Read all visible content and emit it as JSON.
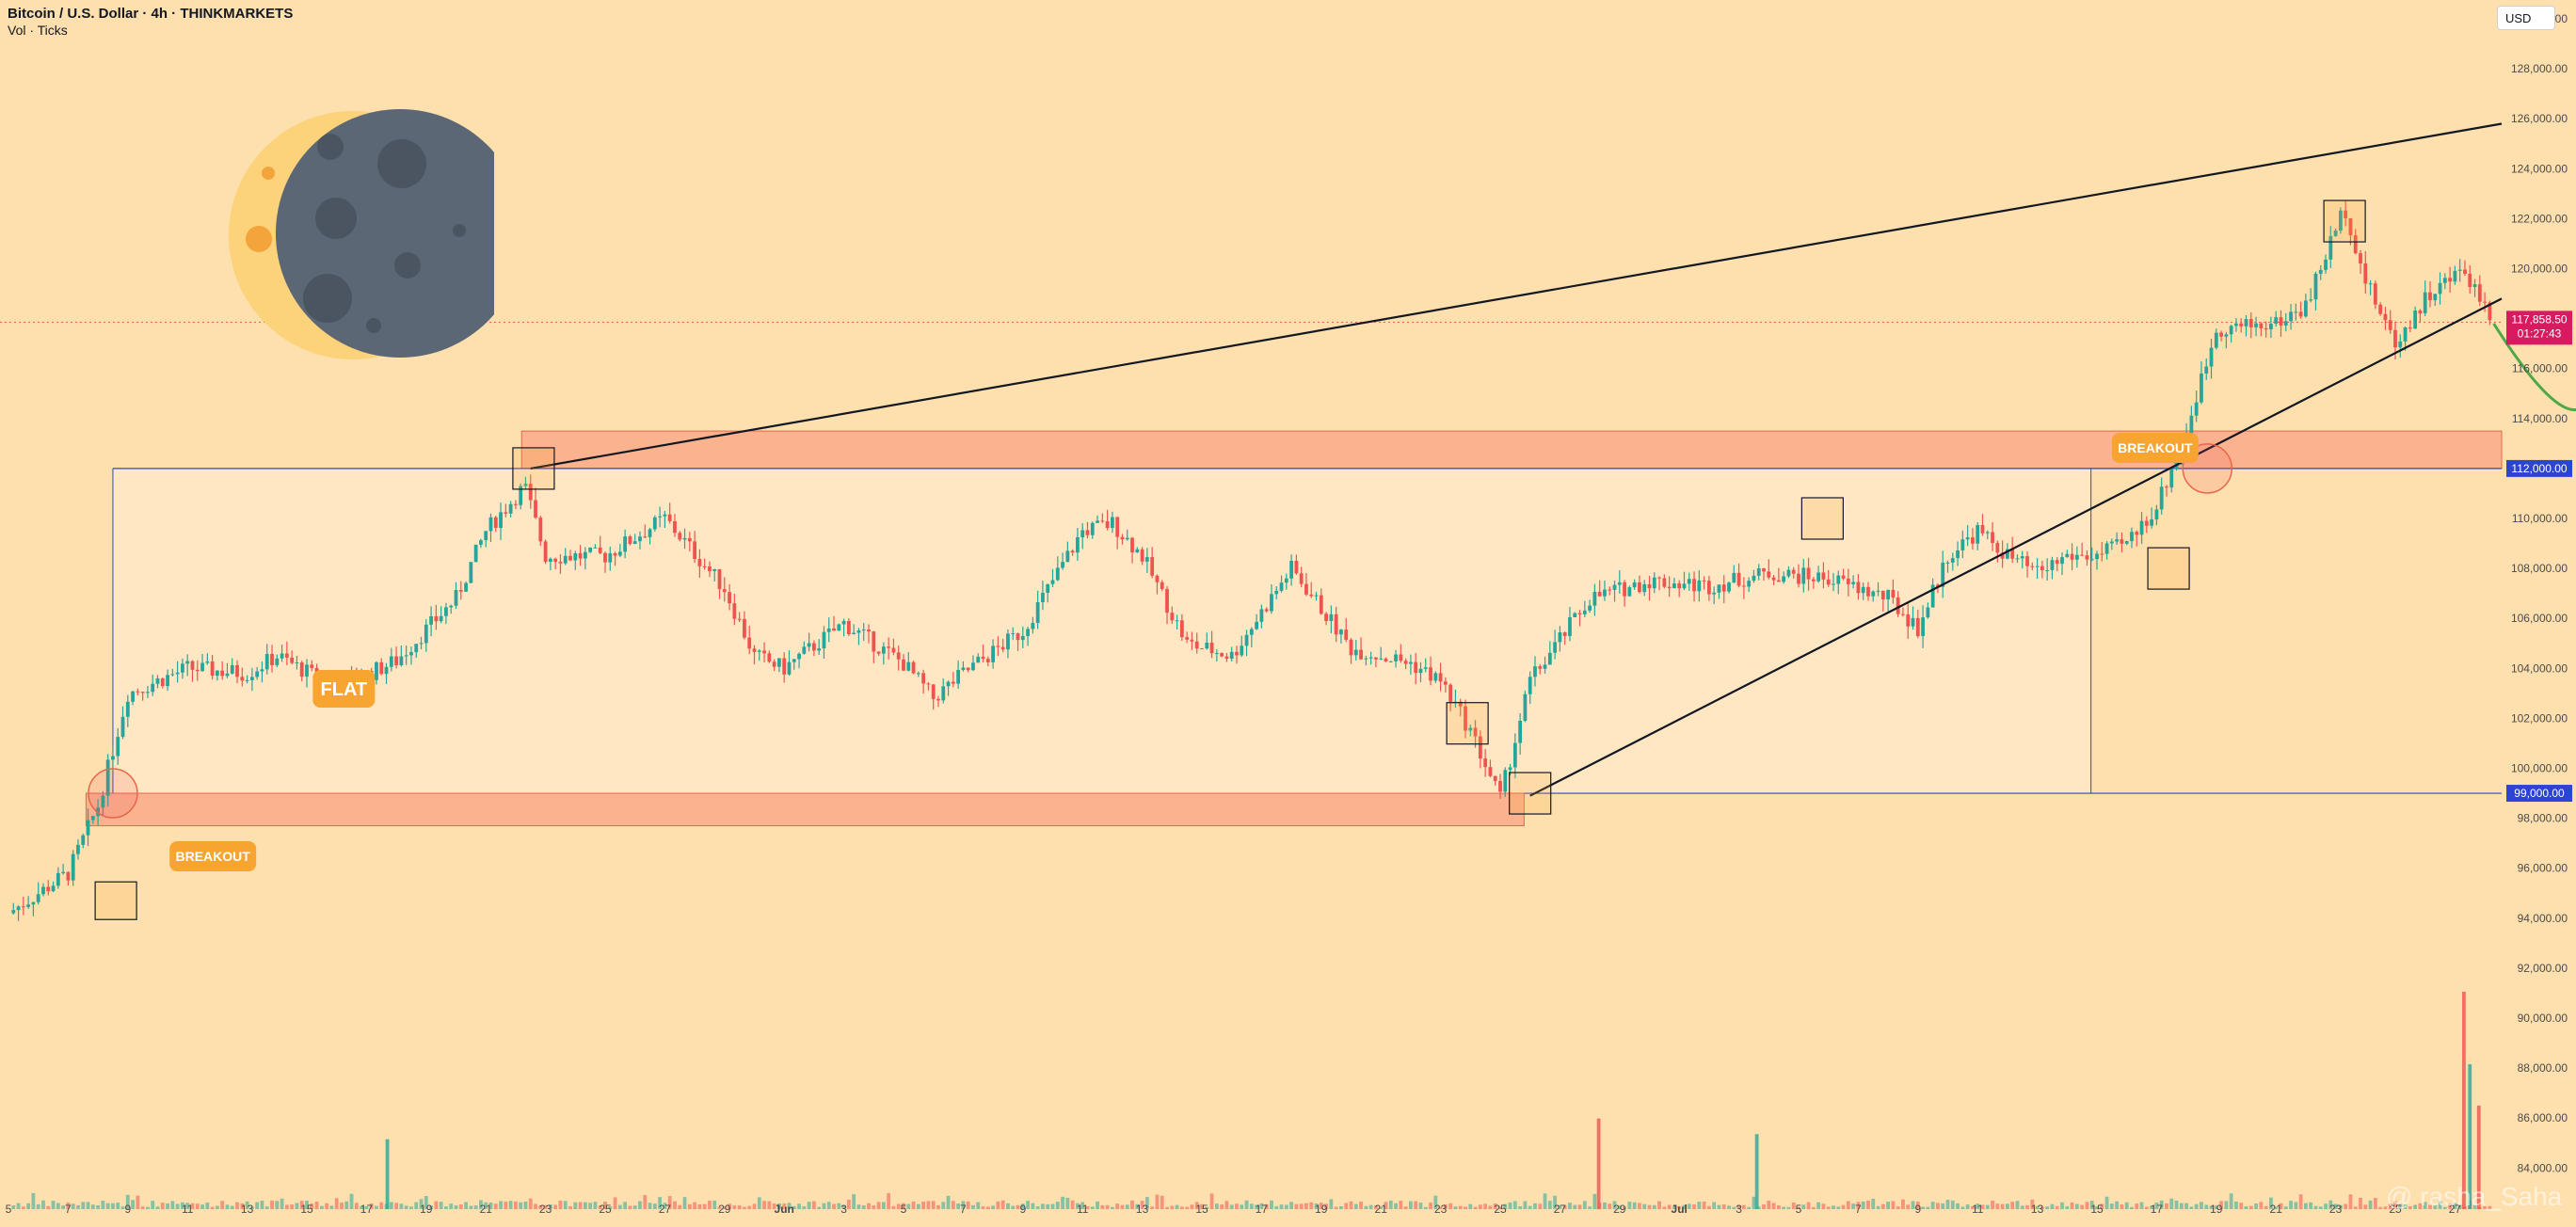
{
  "header": {
    "symbol": "Bitcoin / U.S. Dollar · 4h · THINKMARKETS",
    "volume": "Vol · Ticks"
  },
  "currency": "USD",
  "watermark": "@ rasha_Saha",
  "colors": {
    "background": "#fee0af",
    "up": "#26a69a",
    "down": "#ef5350",
    "zone": "#f6927a",
    "range": "#ffe8c8",
    "trendline": "#131722",
    "projection": "#4ea848",
    "level_line": "#2c44d4",
    "label_bg": "#f7a430",
    "price_tag": "#d81b60"
  },
  "chart_data": {
    "type": "candlestick",
    "title": "Bitcoin / U.S. Dollar · 4h · THINKMARKETS",
    "ylim": [
      84000,
      130000
    ],
    "y_ticks": [
      "130,000.00",
      "128,000.00",
      "126,000.00",
      "124,000.00",
      "122,000.00",
      "120,000.00",
      "118,000.00",
      "116,000.00",
      "114,000.00",
      "112,000.00",
      "110,000.00",
      "108,000.00",
      "106,000.00",
      "104,000.00",
      "102,000.00",
      "100,000.00",
      "98,000.00",
      "96,000.00",
      "94,000.00",
      "92,000.00",
      "90,000.00",
      "88,000.00",
      "86,000.00",
      "84,000.00"
    ],
    "x_ticks": [
      "5",
      "7",
      "9",
      "11",
      "13",
      "15",
      "17",
      "19",
      "21",
      "23",
      "25",
      "27",
      "29",
      "Jun",
      "3",
      "5",
      "7",
      "9",
      "11",
      "13",
      "15",
      "17",
      "19",
      "21",
      "23",
      "25",
      "27",
      "29",
      "Jul",
      "3",
      "5",
      "7",
      "9",
      "11",
      "13",
      "15",
      "17",
      "19",
      "21",
      "23",
      "25",
      "27"
    ],
    "price_path": [
      [
        5,
        94200
      ],
      [
        7,
        95800
      ],
      [
        8,
        98500
      ],
      [
        9,
        103000
      ],
      [
        11,
        104000
      ],
      [
        13,
        103800
      ],
      [
        14,
        104500
      ],
      [
        16,
        103200
      ],
      [
        18,
        104300
      ],
      [
        20,
        106800
      ],
      [
        21,
        109500
      ],
      [
        22.3,
        111300
      ],
      [
        23,
        108500
      ],
      [
        25,
        108500
      ],
      [
        27,
        110000
      ],
      [
        29,
        107200
      ],
      [
        30,
        104500
      ],
      [
        31,
        104000
      ],
      [
        33,
        105800
      ],
      [
        35,
        104200
      ],
      [
        36,
        102800
      ],
      [
        37,
        103800
      ],
      [
        39,
        105500
      ],
      [
        41,
        109500
      ],
      [
        42,
        109800
      ],
      [
        43,
        108500
      ],
      [
        44.5,
        105000
      ],
      [
        46,
        104500
      ],
      [
        48,
        108000
      ],
      [
        50,
        104800
      ],
      [
        52,
        104200
      ],
      [
        53,
        103500
      ],
      [
        54,
        101500
      ],
      [
        55,
        98800
      ],
      [
        56,
        103500
      ],
      [
        58,
        106800
      ],
      [
        60,
        107500
      ],
      [
        62,
        107300
      ],
      [
        64,
        107800
      ],
      [
        66,
        107600
      ],
      [
        68,
        106800
      ],
      [
        69,
        105600
      ],
      [
        70,
        108500
      ],
      [
        71,
        109500
      ],
      [
        72,
        108500
      ],
      [
        73,
        107800
      ],
      [
        74,
        108500
      ],
      [
        75,
        108500
      ],
      [
        76,
        109000
      ],
      [
        77,
        110500
      ],
      [
        78,
        113500
      ],
      [
        79,
        117600
      ],
      [
        81,
        117800
      ],
      [
        82,
        118500
      ],
      [
        83.3,
        122500
      ],
      [
        84,
        119500
      ],
      [
        85,
        117000
      ],
      [
        86,
        118800
      ],
      [
        87.3,
        120000
      ],
      [
        88.3,
        117900
      ]
    ],
    "volume_spikes": [
      [
        17.7,
        13500
      ],
      [
        58.3,
        17500
      ],
      [
        63.6,
        14500
      ],
      [
        87.3,
        42000
      ],
      [
        87.5,
        28000
      ],
      [
        87.8,
        20000
      ]
    ],
    "annotations": {
      "flat_label": "FLAT",
      "breakout_labels": [
        "BREAKOUT",
        "BREAKOUT"
      ],
      "price_labels": [
        "117,858.50",
        "01:27:43",
        "112,000.00",
        "99,000.00"
      ],
      "levels": [
        112000,
        99000
      ],
      "last_price": 117858.5
    }
  }
}
